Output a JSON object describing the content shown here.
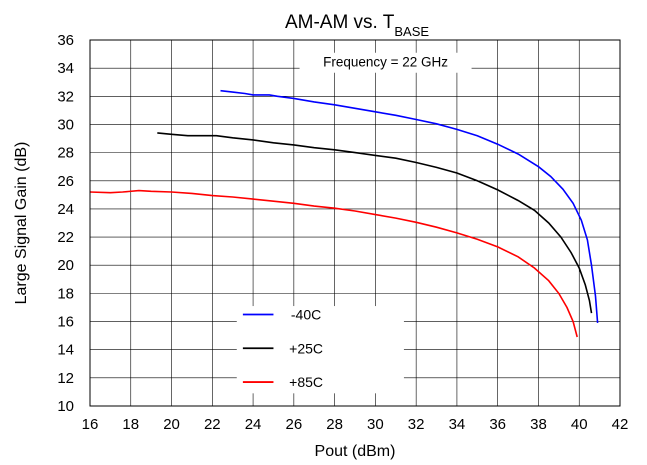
{
  "chart_data": {
    "type": "line",
    "title": "AM-AM vs. T",
    "title_subscript": "BASE",
    "annotation": "Frequency = 22 GHz",
    "xlabel": "Pout (dBm)",
    "ylabel": "Large Signal Gain (dB)",
    "xlim": [
      16,
      42
    ],
    "ylim": [
      10,
      36
    ],
    "xticks": [
      16,
      18,
      20,
      22,
      24,
      26,
      28,
      30,
      32,
      34,
      36,
      38,
      40,
      42
    ],
    "yticks": [
      10,
      12,
      14,
      16,
      18,
      20,
      22,
      24,
      26,
      28,
      30,
      32,
      34,
      36
    ],
    "grid": true,
    "legend_position": "bottom-center",
    "series": [
      {
        "name": "-40C",
        "color": "#0000ff",
        "x": [
          22.4,
          23.0,
          23.6,
          24.0,
          24.8,
          25.2,
          26.0,
          27.0,
          28.0,
          29.0,
          30.0,
          31.0,
          32.0,
          33.0,
          34.0,
          35.0,
          36.0,
          37.0,
          38.0,
          38.6,
          39.2,
          39.7,
          40.1,
          40.4,
          40.6,
          40.8,
          40.9
        ],
        "y": [
          32.4,
          32.3,
          32.2,
          32.1,
          32.1,
          32.0,
          31.85,
          31.6,
          31.4,
          31.15,
          30.9,
          30.65,
          30.35,
          30.05,
          29.65,
          29.2,
          28.6,
          27.9,
          27.0,
          26.3,
          25.4,
          24.4,
          23.2,
          21.8,
          20.0,
          17.8,
          15.9
        ]
      },
      {
        "name": "+25C",
        "color": "#000000",
        "x": [
          19.3,
          20.0,
          20.8,
          21.2,
          22.2,
          23.0,
          24.0,
          25.0,
          26.0,
          27.0,
          28.0,
          29.0,
          30.0,
          31.0,
          32.0,
          33.0,
          34.0,
          35.0,
          36.0,
          37.0,
          37.8,
          38.5,
          39.1,
          39.6,
          40.0,
          40.3,
          40.5,
          40.6
        ],
        "y": [
          29.4,
          29.3,
          29.2,
          29.2,
          29.2,
          29.05,
          28.9,
          28.7,
          28.55,
          28.35,
          28.2,
          28.0,
          27.8,
          27.6,
          27.3,
          26.95,
          26.55,
          26.0,
          25.35,
          24.6,
          23.9,
          23.0,
          22.0,
          20.9,
          19.8,
          18.6,
          17.5,
          16.6
        ]
      },
      {
        "name": "+85C",
        "color": "#ff0000",
        "x": [
          16.0,
          17.0,
          17.6,
          18.4,
          19.0,
          20.0,
          21.0,
          22.0,
          23.0,
          24.0,
          25.0,
          26.0,
          27.0,
          28.0,
          29.0,
          30.0,
          31.0,
          32.0,
          33.0,
          34.0,
          35.0,
          36.0,
          37.0,
          37.8,
          38.5,
          39.0,
          39.4,
          39.7,
          39.9
        ],
        "y": [
          25.2,
          25.15,
          25.2,
          25.3,
          25.25,
          25.2,
          25.1,
          24.95,
          24.85,
          24.7,
          24.55,
          24.4,
          24.2,
          24.05,
          23.85,
          23.6,
          23.35,
          23.05,
          22.7,
          22.3,
          21.85,
          21.3,
          20.6,
          19.8,
          18.9,
          18.0,
          17.0,
          16.0,
          14.9
        ]
      }
    ]
  }
}
